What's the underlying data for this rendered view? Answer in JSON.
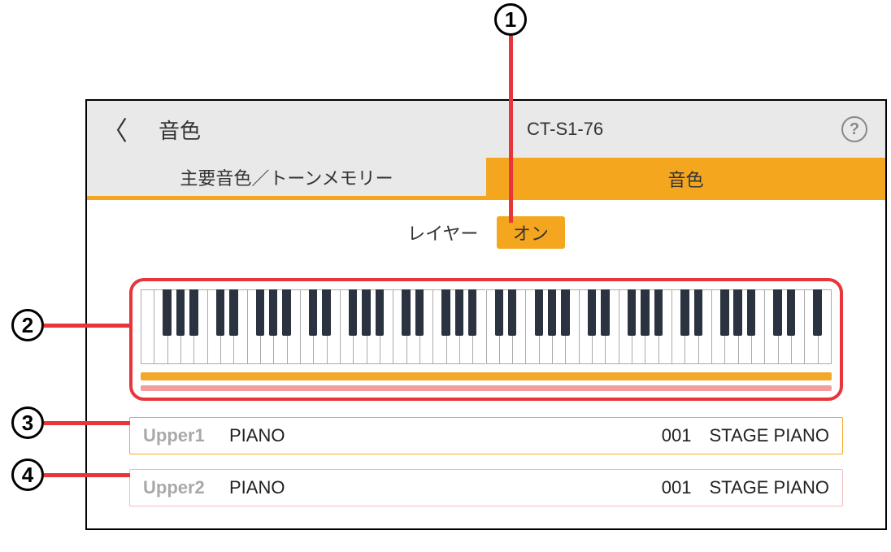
{
  "callouts": {
    "c1": "1",
    "c2": "2",
    "c3": "3",
    "c4": "4"
  },
  "header": {
    "title": "音色",
    "model": "CT-S1-76",
    "help": "?"
  },
  "tabs": {
    "inactive": "主要音色／トーンメモリー",
    "active": "音色"
  },
  "layer": {
    "label": "レイヤー",
    "value": "オン"
  },
  "keyboard": {
    "octaves": 7.33,
    "start": "E",
    "white_keys": 52,
    "bar1_color": "#f4a82a",
    "bar2_color": "#f19e9e",
    "frame_color": "#e8353a"
  },
  "parts": {
    "u1": {
      "part": "Upper1",
      "cat": "PIANO",
      "num": "001",
      "name": "STAGE PIANO"
    },
    "u2": {
      "part": "Upper2",
      "cat": "PIANO",
      "num": "001",
      "name": "STAGE PIANO"
    }
  },
  "colors": {
    "accent": "#f4a71e",
    "callout_line": "#e8353a"
  }
}
